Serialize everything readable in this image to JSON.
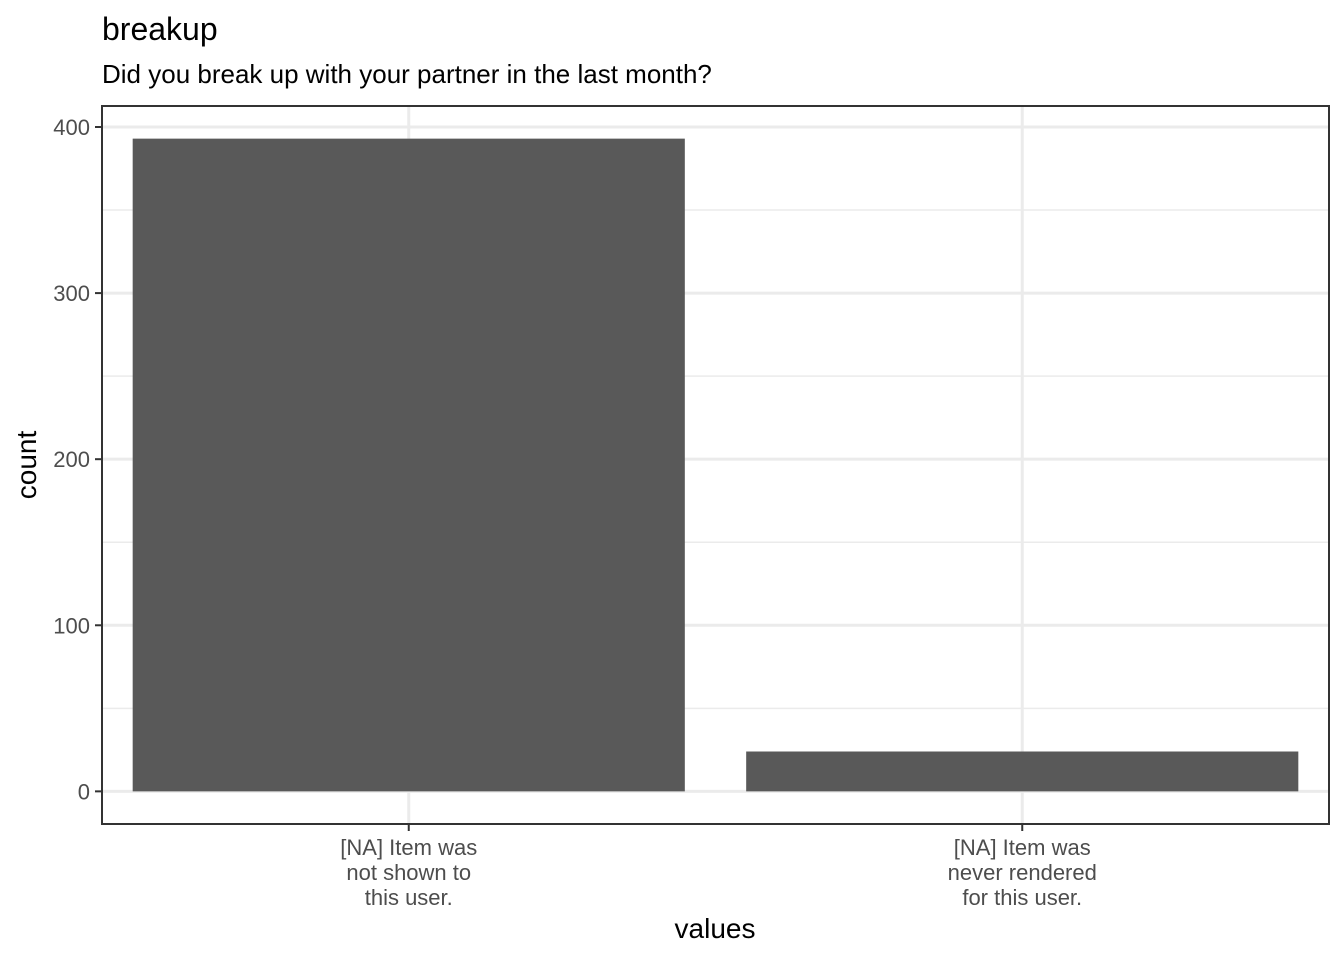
{
  "chart_data": {
    "type": "bar",
    "title": "breakup",
    "subtitle": "Did you break up with your partner in the last month?",
    "xlabel": "values",
    "ylabel": "count",
    "categories": [
      [
        "[NA] Item was",
        "not shown to",
        "this user."
      ],
      [
        "[NA] Item was",
        "never rendered",
        "for this user."
      ]
    ],
    "values": [
      393,
      24
    ],
    "ylim": [
      -19.65,
      412.65
    ],
    "yticks": [
      0,
      100,
      200,
      300,
      400
    ],
    "yminor": [
      50,
      150,
      250,
      350
    ],
    "grid": true,
    "bar_color": "#595959"
  }
}
